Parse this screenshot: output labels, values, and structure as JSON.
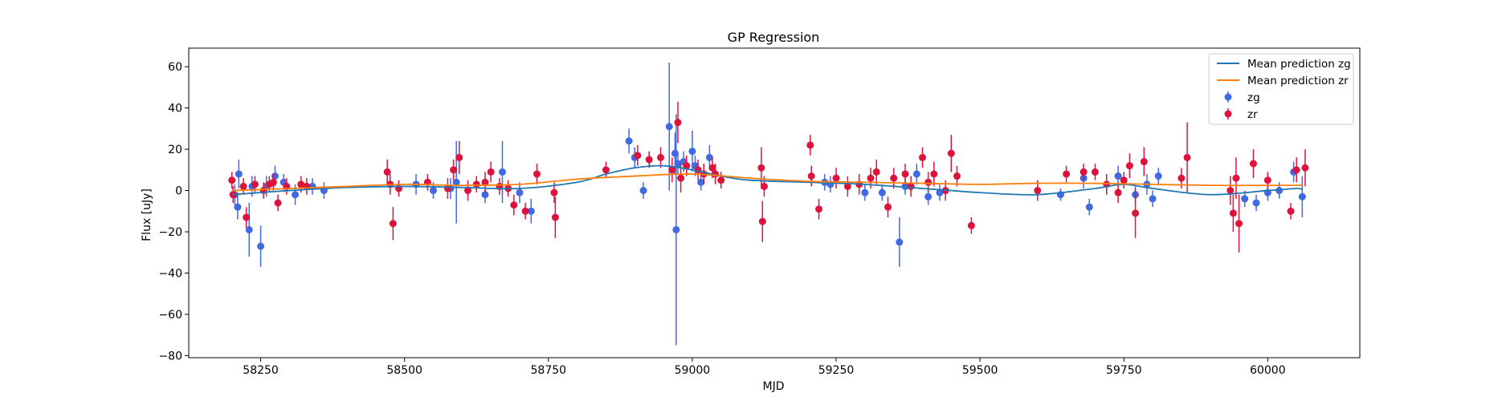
{
  "chart_data": {
    "type": "scatter",
    "title": "GP Regression",
    "xlabel": "MJD",
    "ylabel": "Flux [uJy]",
    "xlim": [
      58125,
      60160
    ],
    "ylim": [
      -81,
      69
    ],
    "xticks": [
      58250,
      58500,
      58750,
      59000,
      59250,
      59500,
      59750,
      60000
    ],
    "yticks": [
      -80,
      -60,
      -40,
      -20,
      0,
      20,
      40,
      60
    ],
    "grid": false,
    "legend_position": "top-right",
    "legend": [
      {
        "label": "Mean prediction zg",
        "kind": "line",
        "color": "#1f77b4"
      },
      {
        "label": "Mean prediction zr",
        "kind": "line",
        "color": "#ff7f0e"
      },
      {
        "label": "zg",
        "kind": "errorbar",
        "color": "#4169e1"
      },
      {
        "label": "zr",
        "kind": "errorbar",
        "color": "#dc143c"
      }
    ],
    "lines": [
      {
        "name": "Mean prediction zg",
        "color": "#1f77b4",
        "x": [
          58200,
          58300,
          58400,
          58500,
          58600,
          58700,
          58800,
          58850,
          58900,
          58950,
          59000,
          59050,
          59100,
          59200,
          59300,
          59400,
          59450,
          59500,
          59600,
          59700,
          59750,
          59800,
          59900,
          60000,
          60050,
          60060
        ],
        "y": [
          -2,
          0,
          1.5,
          2,
          1.5,
          1,
          4,
          8,
          11,
          12,
          10,
          7,
          5,
          4,
          3,
          1,
          0,
          -1,
          -2,
          1,
          3,
          1,
          -2,
          0,
          1,
          0.5
        ]
      },
      {
        "name": "Mean prediction zr",
        "color": "#ff7f0e",
        "x": [
          58200,
          58300,
          58400,
          58500,
          58600,
          58700,
          58800,
          58900,
          59000,
          59100,
          59200,
          59300,
          59400,
          59500,
          59600,
          59700,
          59800,
          59900,
          60000,
          60060
        ],
        "y": [
          0,
          1,
          2,
          3,
          2.5,
          3,
          5.5,
          7,
          8,
          6,
          4.5,
          4,
          3.5,
          3,
          3.5,
          3.5,
          3,
          2.5,
          2.5,
          2.5
        ]
      }
    ],
    "series": [
      {
        "name": "zg",
        "color": "#4169e1",
        "x": [
          58205,
          58210,
          58212,
          58230,
          58235,
          58250,
          58260,
          58275,
          58290,
          58310,
          58340,
          58360,
          58520,
          58550,
          58580,
          58590,
          58640,
          58670,
          58700,
          58720,
          58890,
          58900,
          58915,
          58960,
          58970,
          58972,
          58975,
          58985,
          59000,
          59005,
          59015,
          59030,
          59230,
          59240,
          59300,
          59330,
          59360,
          59370,
          59390,
          59410,
          59430,
          59640,
          59680,
          59690,
          59740,
          59770,
          59790,
          59800,
          59810,
          59960,
          59980,
          60000,
          60020,
          60045,
          60060
        ],
        "y": [
          -2,
          -8,
          8,
          -19,
          2,
          -27,
          2,
          7,
          4,
          -2,
          2,
          0,
          3,
          0,
          1,
          4,
          -2,
          9,
          -1,
          -10,
          24,
          16,
          0,
          31,
          18,
          -19,
          13,
          14,
          19,
          12,
          4,
          16,
          4,
          3,
          -1,
          -1,
          -25,
          2,
          8,
          -3,
          -1,
          -2,
          6,
          -8,
          7,
          -2,
          3,
          -4,
          7,
          -4,
          -6,
          -1,
          0,
          9,
          -3
        ],
        "yerr": [
          5,
          6,
          7,
          13,
          5,
          10,
          5,
          5,
          4,
          5,
          4,
          4,
          5,
          4,
          5,
          20,
          4,
          15,
          5,
          6,
          6,
          5,
          4,
          31,
          10,
          56,
          5,
          5,
          10,
          5,
          4,
          6,
          4,
          4,
          4,
          4,
          12,
          4,
          5,
          4,
          4,
          3,
          5,
          4,
          5,
          4,
          5,
          4,
          4,
          4,
          4,
          4,
          4,
          5,
          10
        ]
      },
      {
        "name": "zr",
        "color": "#dc143c",
        "x": [
          58200,
          58202,
          58220,
          58225,
          58240,
          58255,
          58265,
          58272,
          58280,
          58295,
          58320,
          58330,
          58470,
          58475,
          58480,
          58490,
          58540,
          58575,
          58585,
          58595,
          58610,
          58625,
          58640,
          58650,
          58665,
          58680,
          58690,
          58710,
          58730,
          58760,
          58762,
          58850,
          58905,
          58925,
          58945,
          58965,
          58975,
          58980,
          58990,
          59010,
          59020,
          59035,
          59040,
          59050,
          59120,
          59122,
          59125,
          59205,
          59207,
          59220,
          59250,
          59270,
          59290,
          59310,
          59320,
          59340,
          59350,
          59370,
          59380,
          59400,
          59410,
          59420,
          59440,
          59450,
          59460,
          59485,
          59600,
          59650,
          59680,
          59700,
          59720,
          59740,
          59750,
          59760,
          59770,
          59785,
          59850,
          59860,
          59935,
          59940,
          59945,
          59950,
          59975,
          60000,
          60040,
          60050,
          60065
        ],
        "y": [
          5,
          -2,
          2,
          -13,
          3,
          0,
          3,
          4,
          -6,
          2,
          3,
          2,
          9,
          3,
          -16,
          1,
          4,
          1,
          10,
          16,
          0,
          3,
          4,
          9,
          2,
          1,
          -7,
          -10,
          8,
          -1,
          -13,
          10,
          17,
          15,
          16,
          10,
          33,
          6,
          12,
          10,
          8,
          11,
          8,
          5,
          11,
          -15,
          2,
          22,
          7,
          -9,
          6,
          2,
          3,
          6,
          9,
          -8,
          6,
          8,
          2,
          16,
          4,
          8,
          0,
          18,
          7,
          -17,
          0,
          8,
          9,
          9,
          3,
          -1,
          5,
          12,
          -11,
          14,
          6,
          16,
          0,
          -11,
          6,
          -16,
          13,
          5,
          -10,
          10,
          11
        ],
        "yerr": [
          4,
          4,
          4,
          5,
          4,
          4,
          4,
          4,
          4,
          4,
          4,
          4,
          6,
          5,
          8,
          4,
          4,
          5,
          5,
          8,
          5,
          4,
          5,
          5,
          4,
          4,
          5,
          4,
          5,
          5,
          10,
          4,
          5,
          4,
          5,
          6,
          10,
          7,
          5,
          5,
          5,
          5,
          5,
          4,
          10,
          10,
          5,
          5,
          5,
          5,
          5,
          5,
          5,
          5,
          6,
          5,
          5,
          5,
          5,
          5,
          5,
          6,
          5,
          9,
          5,
          4,
          5,
          4,
          4,
          4,
          5,
          5,
          4,
          6,
          12,
          7,
          5,
          17,
          7,
          9,
          10,
          14,
          7,
          4,
          4,
          6,
          9
        ]
      }
    ]
  }
}
